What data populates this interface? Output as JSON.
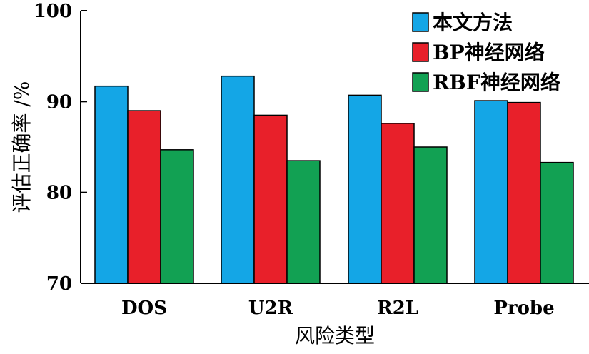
{
  "chart_data": {
    "type": "bar",
    "title": "",
    "xlabel": "风险类型",
    "ylabel": "评估正确率 /%",
    "ylim": [
      70,
      100
    ],
    "yticks": [
      70,
      80,
      90,
      100
    ],
    "categories": [
      "DOS",
      "U2R",
      "R2L",
      "Probe"
    ],
    "series": [
      {
        "name": "本文方法",
        "color": "#14a6e6",
        "values": [
          91.7,
          92.8,
          90.7,
          90.1
        ]
      },
      {
        "name": "BP神经网络",
        "color": "#e8202a",
        "values": [
          89.0,
          88.5,
          87.6,
          89.9
        ]
      },
      {
        "name": "RBF神经网络",
        "color": "#12a153",
        "values": [
          84.7,
          83.5,
          85.0,
          83.3
        ]
      }
    ],
    "legend_position": "top-right",
    "grid": false
  }
}
